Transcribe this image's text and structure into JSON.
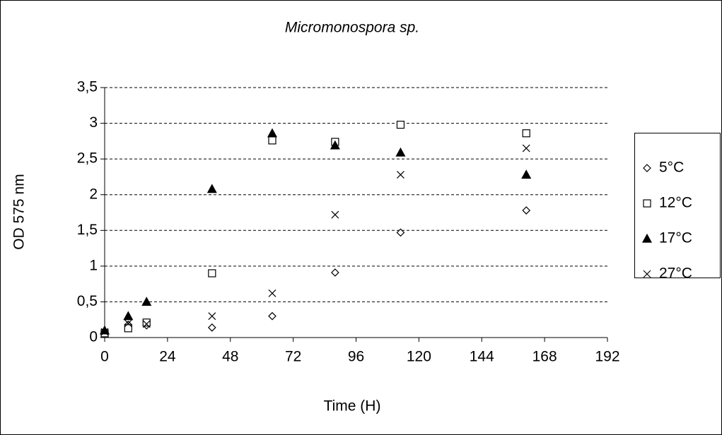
{
  "chart_data": {
    "type": "scatter",
    "title": "Micromonospora sp.",
    "x_label": "Time (H)",
    "y_label": "OD 575 nm",
    "x": [
      0,
      9,
      16,
      41,
      64,
      88,
      113,
      161
    ],
    "series": [
      {
        "name": "5°C",
        "color": "#000000",
        "marker": "diamond",
        "values": [
          0.07,
          0.18,
          0.17,
          0.14,
          0.3,
          0.91,
          1.47,
          1.78
        ]
      },
      {
        "name": "12°C",
        "color": "#000000",
        "marker": "square",
        "values": [
          0.06,
          0.13,
          0.21,
          0.9,
          2.76,
          2.74,
          2.98,
          2.86
        ]
      },
      {
        "name": "17°C",
        "color": "#000000",
        "marker": "triangle",
        "values": [
          0.1,
          0.3,
          0.5,
          2.08,
          2.86,
          2.69,
          2.59,
          2.28
        ]
      },
      {
        "name": "27°C",
        "color": "#000000",
        "marker": "x",
        "values": [
          0.08,
          0.2,
          0.19,
          0.3,
          0.62,
          1.72,
          2.28,
          2.65
        ]
      }
    ],
    "xlim": [
      0,
      192
    ],
    "xticks": [
      0,
      24,
      48,
      72,
      96,
      120,
      144,
      168,
      192
    ],
    "ylim": [
      0,
      3.5
    ],
    "yticks": [
      0,
      {
        "value": 0.5,
        "label": "0,5"
      },
      1,
      {
        "value": 1.5,
        "label": "1,5"
      },
      2,
      {
        "value": 2.5,
        "label": "2,5"
      },
      3,
      {
        "value": 3.5,
        "label": "3,5"
      }
    ],
    "grid": true,
    "legend": "right"
  }
}
